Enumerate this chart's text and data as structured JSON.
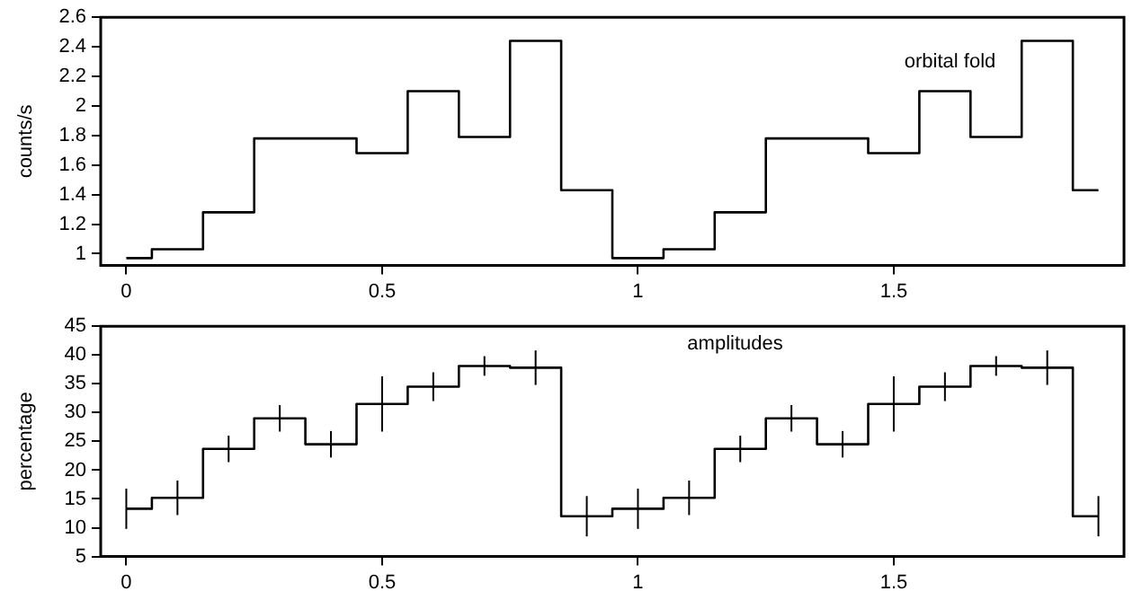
{
  "chart_data": [
    {
      "type": "step",
      "ylabel": "counts/s",
      "annotations": [
        "orbital fold"
      ],
      "x": [
        0,
        0.1,
        0.2,
        0.3,
        0.4,
        0.5,
        0.6,
        0.7,
        0.8,
        0.9,
        1,
        1.1,
        1.2,
        1.3,
        1.4,
        1.5,
        1.6,
        1.7,
        1.8,
        1.9
      ],
      "series": [
        {
          "color": "#000000",
          "values": [
            0.97,
            1.03,
            1.28,
            1.78,
            1.78,
            1.68,
            2.1,
            1.79,
            2.44,
            1.43,
            0.97,
            1.03,
            1.28,
            1.78,
            1.78,
            1.68,
            2.1,
            1.79,
            2.44,
            1.43
          ]
        }
      ],
      "xlim": [
        -0.05,
        1.95
      ],
      "xticks": [
        0,
        0.5,
        1,
        1.5
      ],
      "ylim": [
        0.92,
        2.6
      ],
      "yticks": [
        1,
        1.2,
        1.4,
        1.6,
        1.8,
        2,
        2.2,
        2.4,
        2.6
      ],
      "grid": false,
      "legend": false,
      "marker": "none"
    },
    {
      "type": "step",
      "ylabel": "percentage",
      "annotations": [
        "amplitudes"
      ],
      "x": [
        0,
        0.1,
        0.2,
        0.3,
        0.4,
        0.5,
        0.6,
        0.7,
        0.8,
        0.9,
        1,
        1.1,
        1.2,
        1.3,
        1.4,
        1.5,
        1.6,
        1.7,
        1.8,
        1.9
      ],
      "series": [
        {
          "color": "#000000",
          "values": [
            13.3,
            15.2,
            23.7,
            29,
            24.5,
            31.5,
            34.5,
            38.1,
            37.8,
            12,
            13.3,
            15.2,
            23.7,
            29,
            24.5,
            31.5,
            34.5,
            38.1,
            37.8,
            12
          ],
          "errors": [
            3.5,
            3,
            2.3,
            2.3,
            2.3,
            4.8,
            2.5,
            1.7,
            3,
            3.5,
            3.5,
            3,
            2.3,
            2.3,
            2.3,
            4.8,
            2.5,
            1.7,
            3,
            3.5
          ]
        }
      ],
      "xlim": [
        -0.05,
        1.95
      ],
      "xticks": [
        0,
        0.5,
        1,
        1.5
      ],
      "ylim": [
        5,
        45
      ],
      "yticks": [
        5,
        10,
        15,
        20,
        25,
        30,
        35,
        40,
        45
      ],
      "grid": false,
      "legend": false,
      "marker": "none"
    }
  ]
}
